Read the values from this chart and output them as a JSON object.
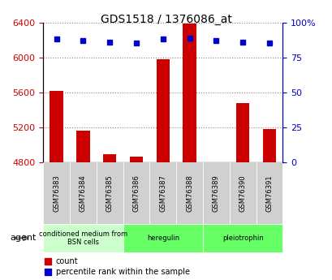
{
  "title": "GDS1518 / 1376086_at",
  "samples": [
    "GSM76383",
    "GSM76384",
    "GSM76385",
    "GSM76386",
    "GSM76387",
    "GSM76388",
    "GSM76389",
    "GSM76390",
    "GSM76391"
  ],
  "counts": [
    5620,
    5160,
    4890,
    4870,
    5980,
    6390,
    4800,
    5480,
    5180
  ],
  "percentiles": [
    88,
    87,
    86,
    85,
    88,
    89,
    87,
    86,
    85
  ],
  "ylim_left": [
    4800,
    6400
  ],
  "ylim_right": [
    0,
    100
  ],
  "yticks_left": [
    4800,
    5200,
    5600,
    6000,
    6400
  ],
  "yticks_right": [
    0,
    25,
    50,
    75,
    100
  ],
  "yticklabels_right": [
    "0",
    "25",
    "50",
    "75",
    "100%"
  ],
  "left_tick_color": "#cc0000",
  "right_tick_color": "#0000cc",
  "bar_color": "#cc0000",
  "dot_color": "#0000cc",
  "groups": [
    {
      "label": "conditioned medium from\nBSN cells",
      "start": 0,
      "end": 3,
      "color": "#ccffcc"
    },
    {
      "label": "heregulin",
      "start": 3,
      "end": 6,
      "color": "#66ff66"
    },
    {
      "label": "pleiotrophin",
      "start": 6,
      "end": 9,
      "color": "#66ff66"
    }
  ],
  "agent_label": "agent",
  "legend_count_label": "count",
  "legend_pct_label": "percentile rank within the sample",
  "bg_color": "#e0e0e0",
  "plot_bg": "#ffffff",
  "grid_color": "#888888"
}
